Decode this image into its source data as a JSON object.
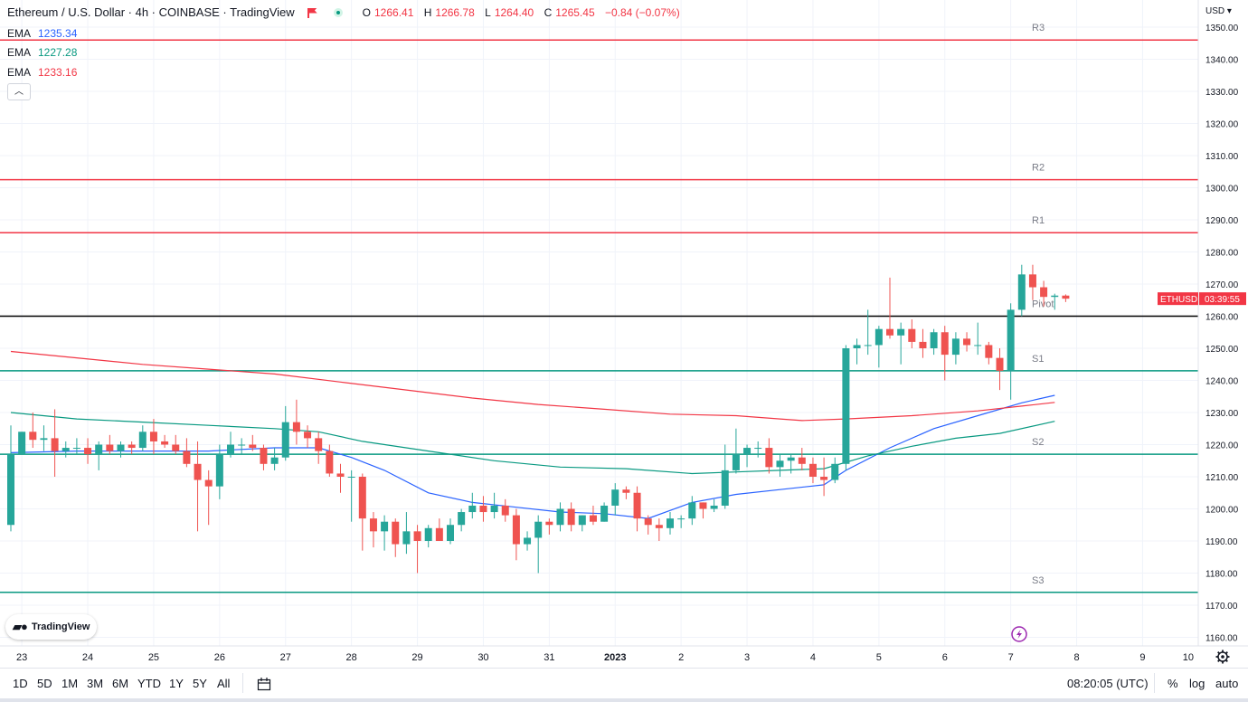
{
  "header": {
    "symbol_title": "Ethereum / U.S. Dollar · 4h · COINBASE · TradingView",
    "ohlc": {
      "open_label": "O",
      "open": "1266.41",
      "high_label": "H",
      "high": "1266.78",
      "low_label": "L",
      "low": "1264.40",
      "close_label": "C",
      "close": "1265.45",
      "change": "−0.84 (−0.07%)"
    }
  },
  "indicators": [
    {
      "label": "EMA",
      "value": "1235.34",
      "color": "#2962ff"
    },
    {
      "label": "EMA",
      "value": "1227.28",
      "color": "#089981"
    },
    {
      "label": "EMA",
      "value": "1233.16",
      "color": "#f23645"
    }
  ],
  "price_axis": {
    "currency": "USD",
    "ticks": [
      "1350.00",
      "1340.00",
      "1330.00",
      "1320.00",
      "1310.00",
      "1300.00",
      "1290.00",
      "1280.00",
      "1270.00",
      "1260.00",
      "1250.00",
      "1240.00",
      "1230.00",
      "1220.00",
      "1210.00",
      "1200.00",
      "1190.00",
      "1180.00",
      "1170.00",
      "1160.00"
    ],
    "last_price_label": {
      "symbol": "ETHUSD",
      "countdown": "03:39:55",
      "color": "#f23645"
    }
  },
  "time_axis": {
    "labels": [
      "23",
      "24",
      "25",
      "26",
      "27",
      "28",
      "29",
      "30",
      "31",
      "2023",
      "2",
      "3",
      "4",
      "5",
      "6",
      "7",
      "8",
      "9",
      "10"
    ]
  },
  "pivot_levels": [
    {
      "name": "R3",
      "price": 1346.0,
      "color": "#f23645"
    },
    {
      "name": "R2",
      "price": 1302.5,
      "color": "#f23645"
    },
    {
      "name": "R1",
      "price": 1286.0,
      "color": "#f23645"
    },
    {
      "name": "Pivot",
      "price": 1260.0,
      "color": "#000000"
    },
    {
      "name": "S1",
      "price": 1243.0,
      "color": "#089981"
    },
    {
      "name": "S2",
      "price": 1217.0,
      "color": "#089981"
    },
    {
      "name": "S3",
      "price": 1174.0,
      "color": "#089981"
    }
  ],
  "chart_data": {
    "type": "candlestick",
    "title": "Ethereum / U.S. Dollar · 4h · COINBASE",
    "ylim": [
      1155,
      1355
    ],
    "xlim": [
      0,
      109
    ],
    "x_tick_positions": [
      {
        "label": "23",
        "x": 1
      },
      {
        "label": "24",
        "x": 7
      },
      {
        "label": "25",
        "x": 13
      },
      {
        "label": "26",
        "x": 19
      },
      {
        "label": "27",
        "x": 25
      },
      {
        "label": "28",
        "x": 31
      },
      {
        "label": "29",
        "x": 37
      },
      {
        "label": "30",
        "x": 43
      },
      {
        "label": "31",
        "x": 49
      },
      {
        "label": "2023",
        "x": 55
      },
      {
        "label": "2",
        "x": 61
      },
      {
        "label": "3",
        "x": 67
      },
      {
        "label": "4",
        "x": 73
      },
      {
        "label": "5",
        "x": 79
      },
      {
        "label": "6",
        "x": 85
      },
      {
        "label": "7",
        "x": 91
      },
      {
        "label": "8",
        "x": 97
      },
      {
        "label": "9",
        "x": 103
      },
      {
        "label": "10",
        "x": 109
      }
    ],
    "up_color": "#26a69a",
    "down_color": "#ef5350",
    "candles": [
      [
        1195.0,
        1226.0,
        1193.0,
        1217.0
      ],
      [
        1217.0,
        1224.0,
        1217.0,
        1224.0
      ],
      [
        1224.0,
        1230.0,
        1219.0,
        1221.5
      ],
      [
        1221.5,
        1226.0,
        1218.0,
        1222.0
      ],
      [
        1222.0,
        1231.0,
        1210.0,
        1218.0
      ],
      [
        1218.0,
        1221.0,
        1216.0,
        1219.0
      ],
      [
        1219.0,
        1222.0,
        1217.0,
        1219.0
      ],
      [
        1219.0,
        1222.0,
        1214.0,
        1217.0
      ],
      [
        1217.0,
        1221.0,
        1212.0,
        1220.0
      ],
      [
        1220.0,
        1223.0,
        1217.0,
        1218.0
      ],
      [
        1218.0,
        1221.0,
        1216.0,
        1220.0
      ],
      [
        1220.0,
        1221.0,
        1217.0,
        1219.0
      ],
      [
        1219.0,
        1226.0,
        1218.0,
        1224.0
      ],
      [
        1224.0,
        1228.0,
        1217.0,
        1221.0
      ],
      [
        1221.0,
        1223.0,
        1219.0,
        1220.0
      ],
      [
        1220.0,
        1223.0,
        1217.0,
        1218.0
      ],
      [
        1218.0,
        1222.0,
        1213.0,
        1214.0
      ],
      [
        1214.0,
        1221.0,
        1193.0,
        1209.0
      ],
      [
        1209.0,
        1212.0,
        1195.0,
        1207.0
      ],
      [
        1207.0,
        1220.0,
        1203.0,
        1217.0
      ],
      [
        1217.0,
        1224.0,
        1216.0,
        1220.0
      ],
      [
        1220.0,
        1222.0,
        1217.0,
        1220.0
      ],
      [
        1220.0,
        1223.0,
        1218.0,
        1219.0
      ],
      [
        1219.0,
        1220.0,
        1212.0,
        1214.0
      ],
      [
        1214.0,
        1219.0,
        1212.0,
        1216.0
      ],
      [
        1216.0,
        1232.0,
        1215.0,
        1227.0
      ],
      [
        1227.0,
        1234.0,
        1220.0,
        1224.0
      ],
      [
        1224.0,
        1226.0,
        1219.0,
        1222.0
      ],
      [
        1222.0,
        1224.0,
        1214.0,
        1218.0
      ],
      [
        1218.0,
        1220.0,
        1210.0,
        1211.0
      ],
      [
        1211.0,
        1214.0,
        1205.0,
        1210.0
      ],
      [
        1210.0,
        1212.0,
        1196.0,
        1210.0
      ],
      [
        1210.0,
        1211.0,
        1187.0,
        1197.0
      ],
      [
        1197.0,
        1199.0,
        1188.0,
        1193.0
      ],
      [
        1193.0,
        1198.0,
        1187.0,
        1196.0
      ],
      [
        1196.0,
        1197.0,
        1185.0,
        1189.0
      ],
      [
        1189.0,
        1199.0,
        1186.0,
        1193.0
      ],
      [
        1193.0,
        1195.0,
        1180.0,
        1190.0
      ],
      [
        1190.0,
        1195.0,
        1188.0,
        1194.0
      ],
      [
        1194.0,
        1197.0,
        1190.0,
        1190.0
      ],
      [
        1190.0,
        1197.0,
        1189.0,
        1195.0
      ],
      [
        1195.0,
        1200.0,
        1193.0,
        1199.0
      ],
      [
        1199.0,
        1205.0,
        1197.0,
        1201.0
      ],
      [
        1201.0,
        1204.0,
        1196.0,
        1199.0
      ],
      [
        1199.0,
        1205.0,
        1197.0,
        1201.0
      ],
      [
        1201.0,
        1203.0,
        1196.0,
        1198.0
      ],
      [
        1198.0,
        1200.0,
        1184.0,
        1189.0
      ],
      [
        1189.0,
        1193.0,
        1187.0,
        1191.0
      ],
      [
        1191.0,
        1198.0,
        1180.0,
        1196.0
      ],
      [
        1196.0,
        1197.0,
        1192.0,
        1195.0
      ],
      [
        1195.0,
        1202.0,
        1193.0,
        1200.0
      ],
      [
        1200.0,
        1202.0,
        1193.0,
        1195.0
      ],
      [
        1195.0,
        1198.0,
        1193.0,
        1198.0
      ],
      [
        1198.0,
        1201.0,
        1195.0,
        1196.0
      ],
      [
        1196.0,
        1202.0,
        1196.0,
        1201.0
      ],
      [
        1201.0,
        1208.0,
        1198.0,
        1206.0
      ],
      [
        1206.0,
        1207.0,
        1203.0,
        1205.0
      ],
      [
        1205.0,
        1207.0,
        1193.0,
        1197.0
      ],
      [
        1197.0,
        1198.0,
        1192.0,
        1195.0
      ],
      [
        1195.0,
        1197.0,
        1190.0,
        1194.0
      ],
      [
        1194.0,
        1199.0,
        1192.0,
        1197.0
      ],
      [
        1197.0,
        1198.0,
        1194.0,
        1197.0
      ],
      [
        1197.0,
        1204.0,
        1195.0,
        1202.0
      ],
      [
        1202.0,
        1202.0,
        1197.0,
        1200.0
      ],
      [
        1200.0,
        1203.0,
        1199.0,
        1201.0
      ],
      [
        1201.0,
        1220.0,
        1200.0,
        1212.0
      ],
      [
        1212.0,
        1225.0,
        1211.0,
        1217.0
      ],
      [
        1217.0,
        1220.0,
        1213.0,
        1219.0
      ],
      [
        1219.0,
        1221.0,
        1216.0,
        1219.0
      ],
      [
        1219.0,
        1222.0,
        1211.0,
        1213.0
      ],
      [
        1213.0,
        1217.0,
        1210.0,
        1215.0
      ],
      [
        1215.0,
        1217.0,
        1211.0,
        1216.0
      ],
      [
        1216.0,
        1219.0,
        1212.0,
        1214.0
      ],
      [
        1214.0,
        1216.0,
        1208.0,
        1210.0
      ],
      [
        1210.0,
        1216.0,
        1204.0,
        1209.0
      ],
      [
        1209.0,
        1216.0,
        1208.0,
        1214.0
      ],
      [
        1214.0,
        1251.0,
        1212.0,
        1250.0
      ],
      [
        1250.0,
        1253.0,
        1245.0,
        1251.0
      ],
      [
        1251.0,
        1262.0,
        1248.0,
        1251.0
      ],
      [
        1251.0,
        1257.0,
        1244.0,
        1256.0
      ],
      [
        1256.0,
        1272.0,
        1253.0,
        1254.0
      ],
      [
        1254.0,
        1258.0,
        1245.0,
        1256.0
      ],
      [
        1256.0,
        1259.0,
        1250.0,
        1252.0
      ],
      [
        1252.0,
        1256.0,
        1247.0,
        1250.0
      ],
      [
        1250.0,
        1256.0,
        1248.0,
        1255.0
      ],
      [
        1255.0,
        1257.0,
        1240.0,
        1248.0
      ],
      [
        1248.0,
        1255.0,
        1245.0,
        1253.0
      ],
      [
        1253.0,
        1255.0,
        1249.0,
        1251.0
      ],
      [
        1251.0,
        1258.0,
        1248.0,
        1251.0
      ],
      [
        1251.0,
        1252.0,
        1245.0,
        1247.0
      ],
      [
        1247.0,
        1250.0,
        1237.0,
        1243.0
      ],
      [
        1243.0,
        1264.0,
        1234.0,
        1262.0
      ],
      [
        1262.0,
        1276.0,
        1260.0,
        1273.0
      ],
      [
        1273.0,
        1276.0,
        1265.0,
        1269.0
      ],
      [
        1269.0,
        1271.0,
        1263.0,
        1266.0
      ],
      [
        1266.0,
        1267.0,
        1262.0,
        1266.41
      ],
      [
        1266.41,
        1266.78,
        1264.4,
        1265.45
      ]
    ],
    "series": [
      {
        "name": "EMA",
        "color": "#2962ff",
        "points": [
          [
            0,
            1217.5
          ],
          [
            6,
            1218.0
          ],
          [
            12,
            1218.0
          ],
          [
            18,
            1218.0
          ],
          [
            24,
            1219.0
          ],
          [
            28,
            1219.0
          ],
          [
            31,
            1216.0
          ],
          [
            34,
            1212.0
          ],
          [
            38,
            1205.0
          ],
          [
            42,
            1202.0
          ],
          [
            46,
            1200.5
          ],
          [
            50,
            1199.0
          ],
          [
            54,
            1198.5
          ],
          [
            58,
            1197.0
          ],
          [
            62,
            1202.0
          ],
          [
            66,
            1204.5
          ],
          [
            70,
            1206.0
          ],
          [
            74,
            1207.5
          ],
          [
            76,
            1212.0
          ],
          [
            80,
            1219.0
          ],
          [
            84,
            1225.0
          ],
          [
            88,
            1229.0
          ],
          [
            92,
            1233.0
          ],
          [
            95,
            1235.34
          ]
        ]
      },
      {
        "name": "EMA",
        "color": "#089981",
        "points": [
          [
            0,
            1230.0
          ],
          [
            6,
            1228.0
          ],
          [
            12,
            1227.0
          ],
          [
            18,
            1226.0
          ],
          [
            24,
            1225.0
          ],
          [
            28,
            1224.0
          ],
          [
            32,
            1221.0
          ],
          [
            38,
            1218.0
          ],
          [
            44,
            1215.0
          ],
          [
            50,
            1213.0
          ],
          [
            56,
            1212.5
          ],
          [
            62,
            1211.0
          ],
          [
            66,
            1211.5
          ],
          [
            70,
            1212.0
          ],
          [
            74,
            1212.5
          ],
          [
            78,
            1216.5
          ],
          [
            82,
            1219.5
          ],
          [
            86,
            1222.0
          ],
          [
            90,
            1223.5
          ],
          [
            95,
            1227.28
          ]
        ]
      },
      {
        "name": "EMA",
        "color": "#f23645",
        "points": [
          [
            0,
            1249.0
          ],
          [
            6,
            1247.0
          ],
          [
            12,
            1245.0
          ],
          [
            18,
            1243.5
          ],
          [
            24,
            1242.0
          ],
          [
            30,
            1239.5
          ],
          [
            36,
            1237.0
          ],
          [
            42,
            1234.5
          ],
          [
            48,
            1232.5
          ],
          [
            54,
            1231.0
          ],
          [
            60,
            1229.5
          ],
          [
            66,
            1229.0
          ],
          [
            70,
            1228.0
          ],
          [
            72,
            1227.5
          ],
          [
            76,
            1228.0
          ],
          [
            82,
            1229.0
          ],
          [
            88,
            1230.5
          ],
          [
            92,
            1232.0
          ],
          [
            95,
            1233.16
          ]
        ]
      }
    ]
  },
  "bottom_toolbar": {
    "ranges": [
      "1D",
      "5D",
      "1M",
      "3M",
      "6M",
      "YTD",
      "1Y",
      "5Y",
      "All"
    ],
    "clock": "08:20:05 (UTC)",
    "percent_label": "%",
    "log_label": "log",
    "auto_label": "auto"
  },
  "branding": {
    "logo_text": "TradingView"
  }
}
